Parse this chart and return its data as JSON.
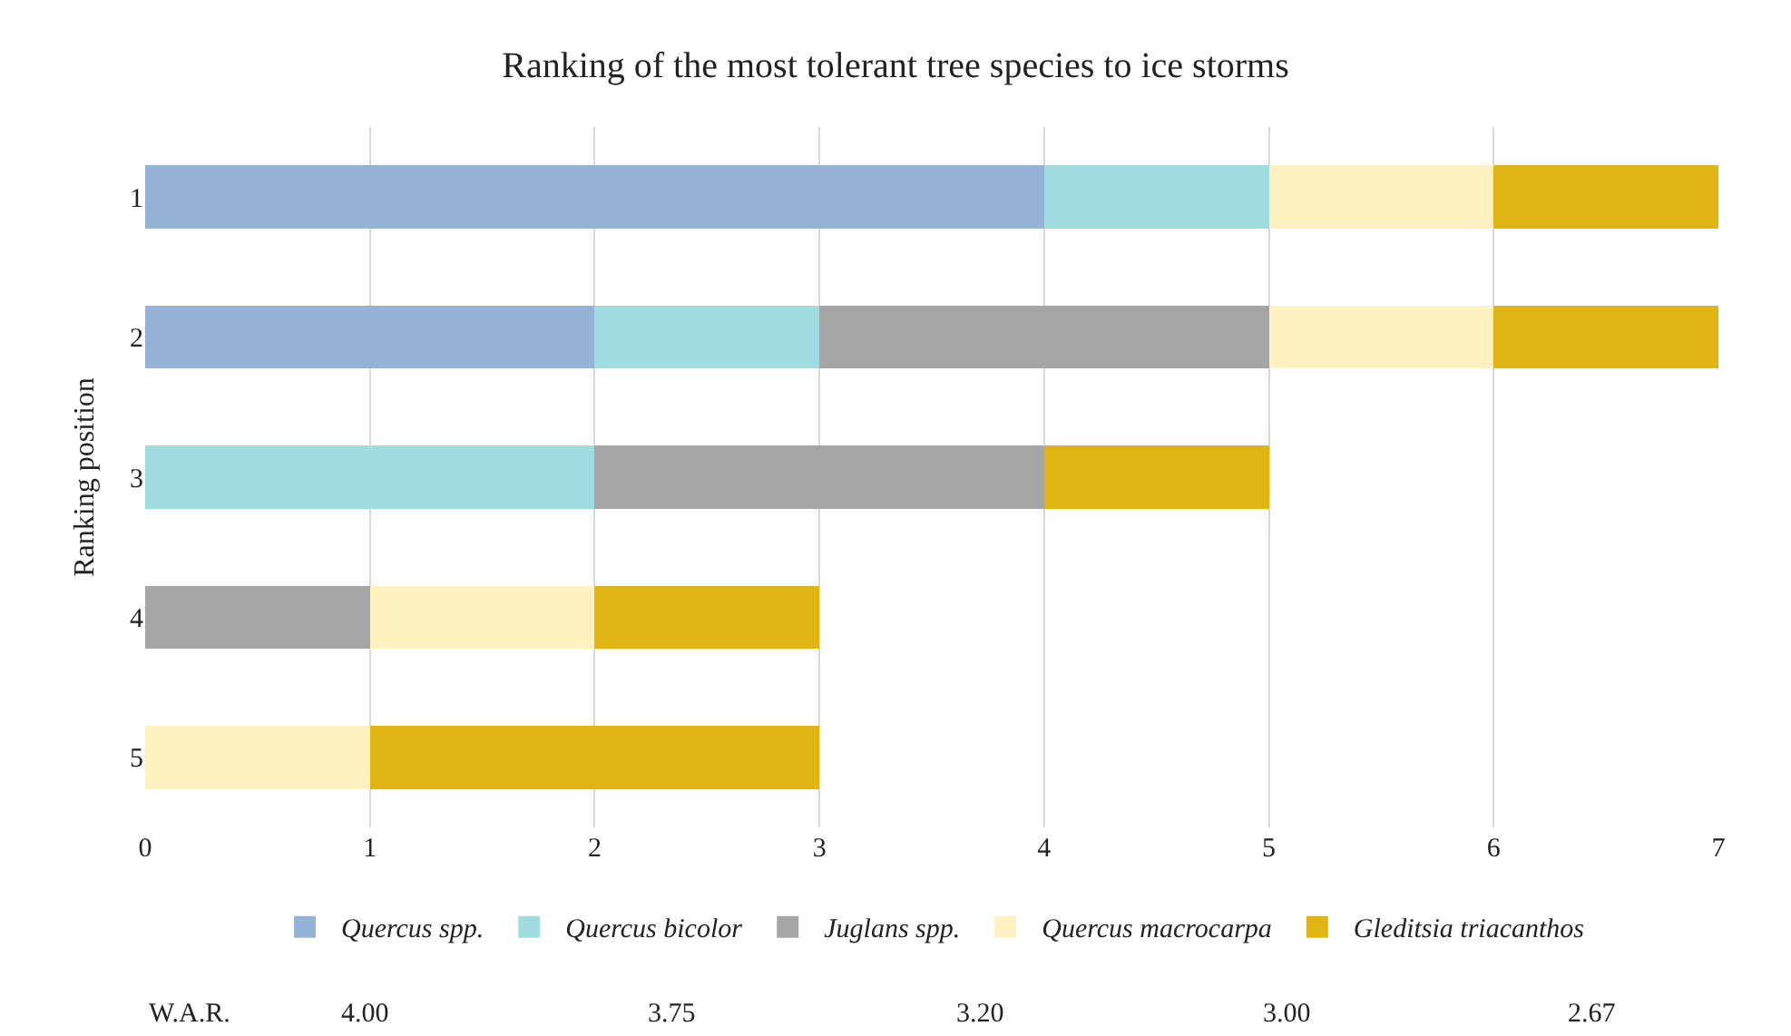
{
  "chart_data": {
    "type": "bar",
    "orientation": "horizontal",
    "stacked": true,
    "title": "Ranking of the most tolerant tree species to ice storms",
    "ylabel": "Ranking position",
    "categories": [
      "1",
      "2",
      "3",
      "4",
      "5"
    ],
    "series": [
      {
        "name": "Quercus spp.",
        "color": "#95b3d7",
        "values": [
          4,
          2,
          null,
          null,
          null
        ]
      },
      {
        "name": "Quercus bicolor",
        "color": "#a0dcdf",
        "values": [
          1,
          1,
          2,
          null,
          null
        ]
      },
      {
        "name": "Juglans spp.",
        "color": "#a5a5a5",
        "values": [
          null,
          2,
          2,
          1,
          null
        ]
      },
      {
        "name": "Quercus macrocarpa",
        "color": "#fff2c0",
        "values": [
          1,
          1,
          null,
          1,
          1
        ]
      },
      {
        "name": "Gleditsia triacanthos",
        "color": "#e0b412",
        "values": [
          1,
          1,
          1,
          1,
          2
        ]
      }
    ],
    "xlim": [
      0,
      7
    ],
    "xticks": [
      0,
      1,
      2,
      3,
      4,
      5,
      6,
      7
    ],
    "grid": "x",
    "legend": "bottom",
    "annotations": [
      "W.A.R.",
      "4.00",
      "3.75",
      "3.20",
      "3.00",
      "2.67"
    ]
  }
}
